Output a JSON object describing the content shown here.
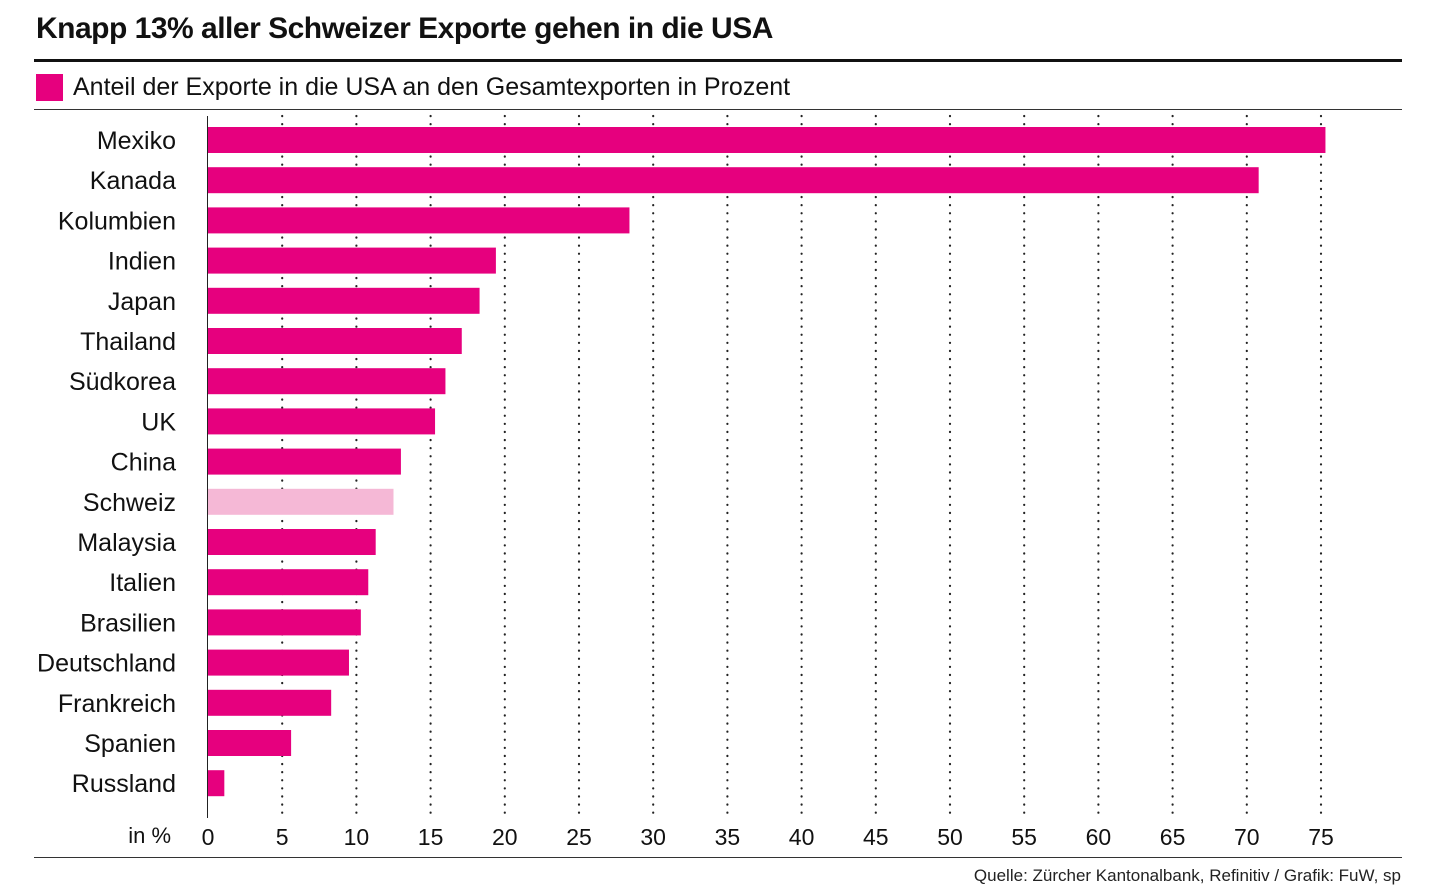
{
  "title": "Knapp 13% aller Schweizer Exporte gehen in die USA",
  "legend_label": "Anteil der Exporte in die USA an den Gesamtexporten in Prozent",
  "source": "Quelle: Zürcher Kantonalbank, Refinitiv / Grafik: FuW, sp",
  "colors": {
    "bar": "#e6007e",
    "highlight": "#f5b8d6",
    "grid": "#222222",
    "text": "#111111"
  },
  "chart_data": {
    "type": "bar",
    "orientation": "horizontal",
    "categories": [
      "Mexiko",
      "Kanada",
      "Kolumbien",
      "Indien",
      "Japan",
      "Thailand",
      "Südkorea",
      "UK",
      "China",
      "Schweiz",
      "Malaysia",
      "Italien",
      "Brasilien",
      "Deutschland",
      "Frankreich",
      "Spanien",
      "Russland"
    ],
    "series": [
      {
        "name": "Anteil der Exporte in die USA an den Gesamtexporten in Prozent",
        "values": [
          75.3,
          70.8,
          28.4,
          19.4,
          18.3,
          17.1,
          16.0,
          15.3,
          13.0,
          12.5,
          11.3,
          10.8,
          10.3,
          9.5,
          8.3,
          5.6,
          1.1
        ]
      }
    ],
    "highlight_category": "Schweiz",
    "xlabel": "in %",
    "xlim": [
      0,
      77
    ],
    "xticks": [
      0,
      5,
      10,
      15,
      20,
      25,
      30,
      35,
      40,
      45,
      50,
      55,
      60,
      65,
      70,
      75
    ],
    "grid": "vertical dotted",
    "legend_position": "top-left"
  }
}
